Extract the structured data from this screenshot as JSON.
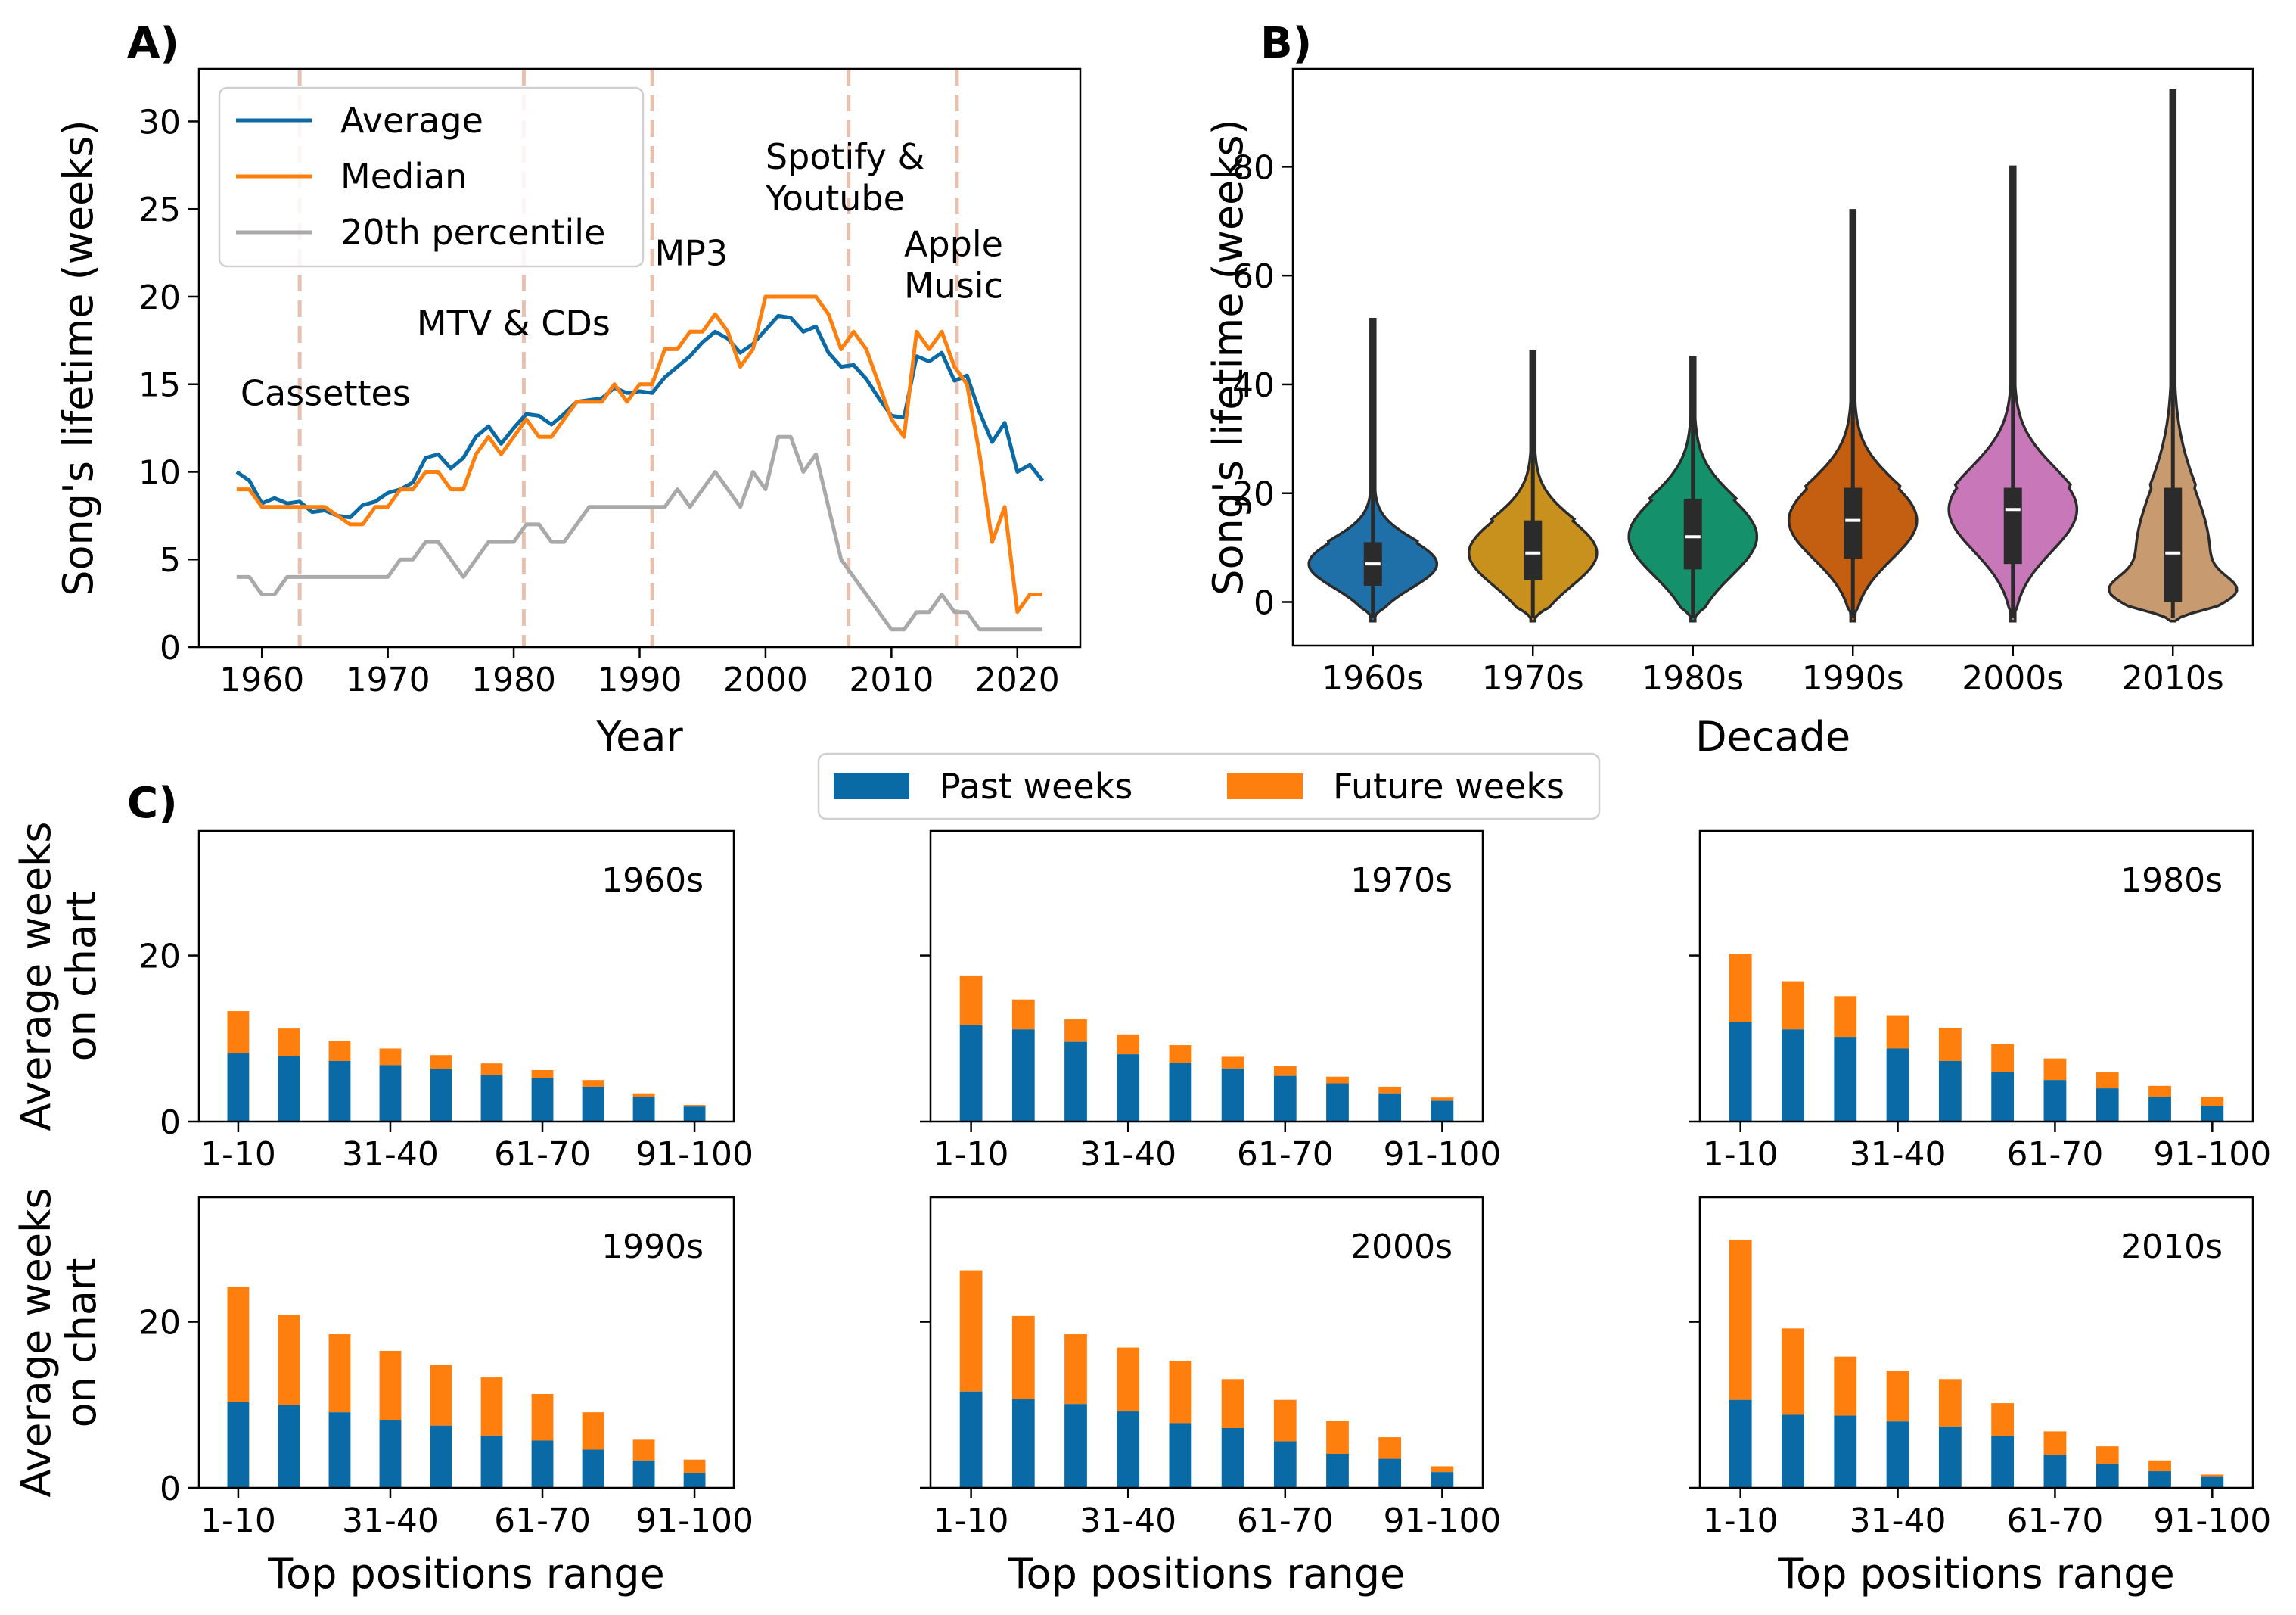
{
  "colors": {
    "average": "#0a6aa6",
    "median": "#ff7f0e",
    "p20": "#a9a9a9",
    "vline": "#e8c0b0",
    "past": "#0a6aa6",
    "future": "#ff7f0e",
    "violins": [
      "#1f6fa8",
      "#c8901c",
      "#14906a",
      "#c45f12",
      "#c878b8",
      "#c89a70"
    ]
  },
  "chart_data": [
    {
      "panel": "A)",
      "type": "line",
      "xlabel": "Year",
      "ylabel": "Song's lifetime (weeks)",
      "xlim": [
        1955,
        2025
      ],
      "ylim": [
        0,
        33
      ],
      "xticks": [
        1960,
        1970,
        1980,
        1990,
        2000,
        2010,
        2020
      ],
      "yticks": [
        0,
        5,
        10,
        15,
        20,
        25,
        30
      ],
      "legend_position": "top-left",
      "x": [
        1958,
        1959,
        1960,
        1961,
        1962,
        1963,
        1964,
        1965,
        1966,
        1967,
        1968,
        1969,
        1970,
        1971,
        1972,
        1973,
        1974,
        1975,
        1976,
        1977,
        1978,
        1979,
        1980,
        1981,
        1982,
        1983,
        1984,
        1985,
        1986,
        1987,
        1988,
        1989,
        1990,
        1991,
        1992,
        1993,
        1994,
        1995,
        1996,
        1997,
        1998,
        1999,
        2000,
        2001,
        2002,
        2003,
        2004,
        2005,
        2006,
        2007,
        2008,
        2009,
        2010,
        2011,
        2012,
        2013,
        2014,
        2015,
        2016,
        2017,
        2018,
        2019,
        2020,
        2021,
        2022
      ],
      "series": [
        {
          "name": "Average",
          "values": [
            10.0,
            9.5,
            8.2,
            8.5,
            8.2,
            8.3,
            7.7,
            7.8,
            7.5,
            7.4,
            8.1,
            8.3,
            8.8,
            9.0,
            9.4,
            10.8,
            11.0,
            10.2,
            10.8,
            12.0,
            12.6,
            11.6,
            12.5,
            13.3,
            13.2,
            12.7,
            13.3,
            14.0,
            14.1,
            14.2,
            14.8,
            14.5,
            14.6,
            14.5,
            15.4,
            16.0,
            16.6,
            17.4,
            18.0,
            17.6,
            16.8,
            17.3,
            18.1,
            18.9,
            18.8,
            18.0,
            18.3,
            16.8,
            16.0,
            16.1,
            15.3,
            14.2,
            13.2,
            13.1,
            16.6,
            16.3,
            16.8,
            15.2,
            15.5,
            13.4,
            11.7,
            12.8,
            10.0,
            10.4,
            9.5
          ]
        },
        {
          "name": "Median",
          "values": [
            9,
            9,
            8,
            8,
            8,
            8,
            8,
            8,
            7.5,
            7,
            7,
            8,
            8,
            9,
            9,
            10,
            10,
            9,
            9,
            11,
            12,
            11,
            12,
            13,
            12,
            12,
            13,
            14,
            14,
            14,
            15,
            14,
            15,
            15,
            17,
            17,
            18,
            18,
            19,
            18,
            16,
            17,
            20,
            20,
            20,
            20,
            20,
            19,
            17,
            18,
            17,
            15,
            13,
            12,
            18,
            17,
            18,
            16,
            15,
            11,
            6,
            8,
            2,
            3,
            3
          ]
        },
        {
          "name": "20th percentile",
          "values": [
            4,
            4,
            3,
            3,
            4,
            4,
            4,
            4,
            4,
            4,
            4,
            4,
            4,
            5,
            5,
            6,
            6,
            5,
            4,
            5,
            6,
            6,
            6,
            7,
            7,
            6,
            6,
            7,
            8,
            8,
            8,
            8,
            8,
            8,
            8,
            9,
            8,
            9,
            10,
            9,
            8,
            10,
            9,
            12,
            12,
            10,
            11,
            8,
            5,
            4,
            3,
            2,
            1,
            1,
            2,
            2,
            3,
            2,
            2,
            1,
            1,
            1,
            1,
            1,
            1
          ]
        }
      ],
      "vlines": [
        1963,
        1980.8,
        1991,
        2006.6,
        2015.2
      ],
      "annotations": [
        {
          "text": "Cassettes",
          "x": 1958.3,
          "y": 13.8
        },
        {
          "text": "MTV & CDs",
          "x": 1972.3,
          "y": 17.8
        },
        {
          "text": "MP3",
          "x": 1991.2,
          "y": 21.8
        },
        {
          "lines": [
            "Spotify &",
            "Youtube"
          ],
          "x": 2000,
          "y": 27.3
        },
        {
          "lines": [
            "Apple",
            "Music"
          ],
          "x": 2011,
          "y": 22.3
        }
      ]
    },
    {
      "panel": "B)",
      "type": "violin",
      "xlabel": "Decade",
      "ylabel": "Song's lifetime (weeks)",
      "ylim": [
        -8,
        98
      ],
      "yticks": [
        0,
        20,
        40,
        60,
        80
      ],
      "categories": [
        "1960s",
        "1970s",
        "1980s",
        "1990s",
        "2000s",
        "2010s"
      ],
      "stats": [
        {
          "min": 0,
          "q1": 3,
          "median": 7,
          "q3": 11,
          "max": 52
        },
        {
          "min": 0,
          "q1": 4,
          "median": 9,
          "q3": 15,
          "max": 46
        },
        {
          "min": 0,
          "q1": 6,
          "median": 12,
          "q3": 19,
          "max": 45
        },
        {
          "min": 0,
          "q1": 8,
          "median": 15,
          "q3": 21,
          "max": 72
        },
        {
          "min": 0,
          "q1": 7,
          "median": 17,
          "q3": 21,
          "max": 80
        },
        {
          "min": 0,
          "q1": 0,
          "median": 9,
          "q3": 21,
          "max": 94
        }
      ]
    },
    {
      "panel": "C)",
      "type": "bar",
      "stacked": true,
      "xlabel": "Top positions range",
      "ylabel": "Average weeks on chart",
      "ylabel_lines": [
        "Average weeks",
        "on chart"
      ],
      "ylim": [
        0,
        35
      ],
      "yticks": [
        0,
        20
      ],
      "categories": [
        "1-10",
        "11-20",
        "21-30",
        "31-40",
        "41-50",
        "51-60",
        "61-70",
        "71-80",
        "81-90",
        "91-100"
      ],
      "shown_tick_labels": [
        "1-10",
        "31-40",
        "61-70",
        "91-100"
      ],
      "legend": [
        "Past weeks",
        "Future weeks"
      ],
      "legend_position": "top-center",
      "panels": [
        {
          "title": "1960s",
          "past": [
            8.2,
            7.9,
            7.3,
            6.8,
            6.3,
            5.6,
            5.2,
            4.2,
            3.0,
            1.8
          ],
          "total": [
            13.3,
            11.2,
            9.7,
            8.8,
            8.0,
            7.0,
            6.2,
            5.0,
            3.4,
            2.0
          ]
        },
        {
          "title": "1970s",
          "past": [
            11.6,
            11.1,
            9.6,
            8.1,
            7.1,
            6.4,
            5.5,
            4.6,
            3.4,
            2.5
          ],
          "total": [
            17.6,
            14.7,
            12.3,
            10.5,
            9.2,
            7.8,
            6.7,
            5.4,
            4.2,
            2.9
          ]
        },
        {
          "title": "1980s",
          "past": [
            12.0,
            11.1,
            10.2,
            8.8,
            7.3,
            6.0,
            5.0,
            4.0,
            3.0,
            1.9
          ],
          "total": [
            20.2,
            16.9,
            15.1,
            12.8,
            11.3,
            9.3,
            7.6,
            6.0,
            4.3,
            3.0
          ]
        },
        {
          "title": "1990s",
          "past": [
            10.3,
            10.0,
            9.1,
            8.2,
            7.5,
            6.3,
            5.7,
            4.6,
            3.3,
            1.8
          ],
          "total": [
            24.2,
            20.8,
            18.5,
            16.5,
            14.8,
            13.3,
            11.3,
            9.1,
            5.8,
            3.4
          ]
        },
        {
          "title": "2000s",
          "past": [
            11.6,
            10.7,
            10.1,
            9.2,
            7.8,
            7.2,
            5.6,
            4.1,
            3.5,
            1.9
          ],
          "total": [
            26.2,
            20.7,
            18.5,
            16.9,
            15.3,
            13.1,
            10.6,
            8.1,
            6.1,
            2.6
          ]
        },
        {
          "title": "2010s",
          "past": [
            10.6,
            8.8,
            8.7,
            8.0,
            7.4,
            6.2,
            4.0,
            2.9,
            2.0,
            1.4
          ],
          "total": [
            29.9,
            19.2,
            15.8,
            14.1,
            13.1,
            10.2,
            6.8,
            5.0,
            3.3,
            1.6
          ]
        }
      ]
    }
  ]
}
